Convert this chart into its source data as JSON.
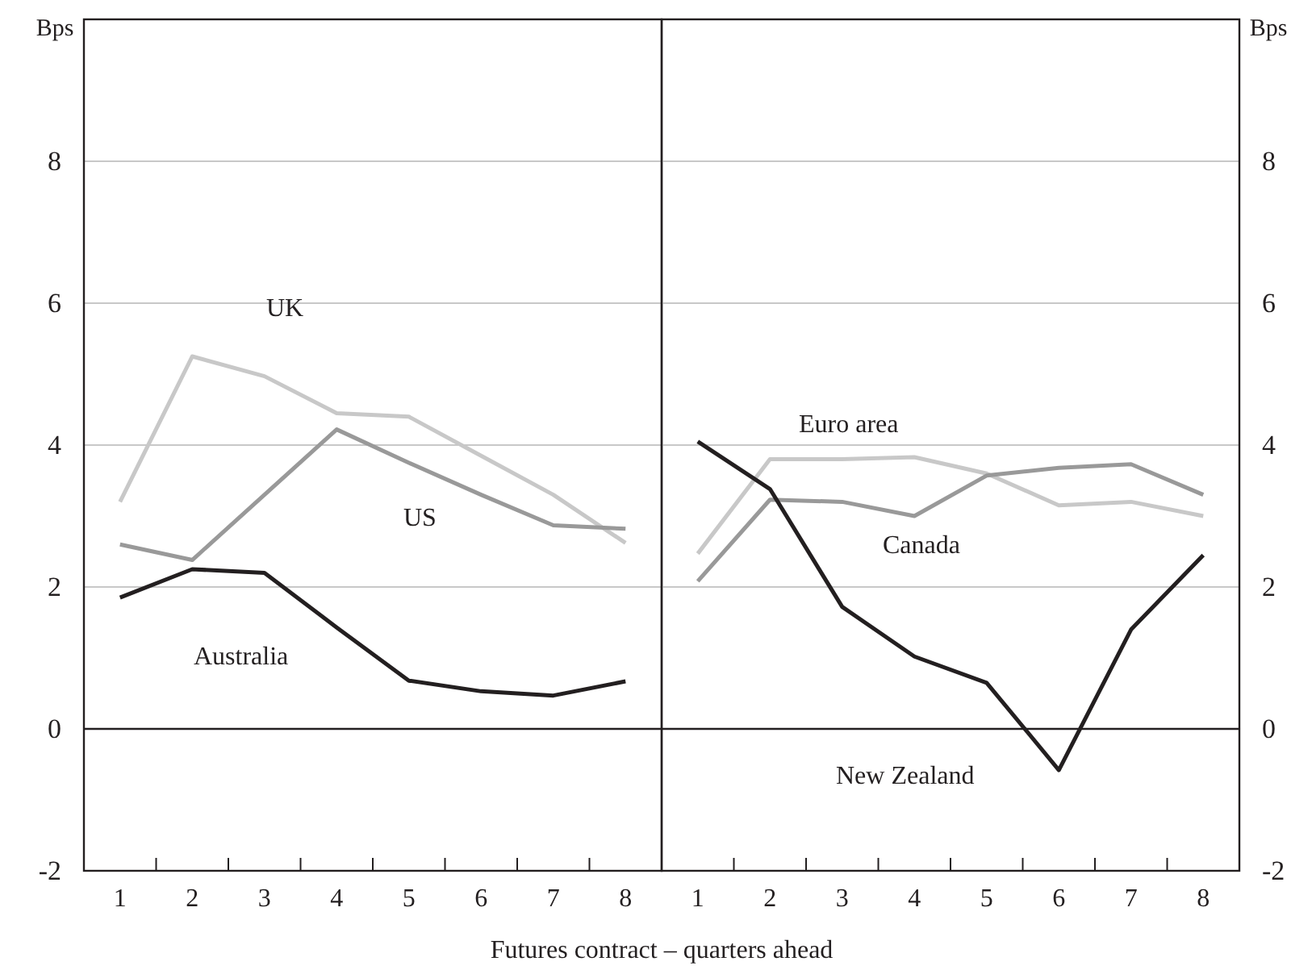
{
  "chart_data": [
    {
      "type": "line",
      "categories": [
        "1",
        "2",
        "3",
        "4",
        "5",
        "6",
        "7",
        "8"
      ],
      "ylabel": "Bps",
      "xlabel": "Futures contract – quarters ahead",
      "ylim": [
        -2,
        10
      ],
      "yticks": [
        -2,
        0,
        2,
        4,
        6,
        8
      ],
      "grid": "y",
      "marker": "none",
      "line_style": "solid",
      "ref_lines": [
        {
          "axis": "y",
          "value": 0,
          "color": "#231f20"
        }
      ],
      "series": [
        {
          "name": "UK",
          "color": "#c8c8c8",
          "values": [
            3.2,
            5.25,
            4.97,
            4.45,
            4.4,
            3.85,
            3.3,
            2.62
          ]
        },
        {
          "name": "US",
          "color": "#999999",
          "values": [
            2.6,
            2.38,
            3.3,
            4.22,
            3.75,
            3.3,
            2.87,
            2.82
          ]
        },
        {
          "name": "Australia",
          "color": "#231f20",
          "values": [
            1.85,
            2.25,
            2.2,
            1.43,
            0.68,
            0.53,
            0.47,
            0.67
          ]
        }
      ]
    },
    {
      "type": "line",
      "categories": [
        "1",
        "2",
        "3",
        "4",
        "5",
        "6",
        "7",
        "8"
      ],
      "ylabel": "Bps",
      "ylim": [
        -2,
        10
      ],
      "yticks": [
        -2,
        0,
        2,
        4,
        6,
        8
      ],
      "grid": "y",
      "marker": "none",
      "line_style": "solid",
      "ref_lines": [
        {
          "axis": "y",
          "value": 0,
          "color": "#231f20"
        }
      ],
      "series": [
        {
          "name": "Euro area",
          "color": "#c8c8c8",
          "values": [
            2.47,
            3.8,
            3.8,
            3.83,
            3.6,
            3.15,
            3.2,
            3.0
          ]
        },
        {
          "name": "Canada",
          "color": "#999999",
          "values": [
            2.08,
            3.23,
            3.2,
            3.0,
            3.57,
            3.68,
            3.73,
            3.3
          ]
        },
        {
          "name": "New Zealand",
          "color": "#231f20",
          "values": [
            4.05,
            3.38,
            1.72,
            1.02,
            0.65,
            -0.58,
            1.4,
            2.45
          ]
        }
      ]
    }
  ]
}
